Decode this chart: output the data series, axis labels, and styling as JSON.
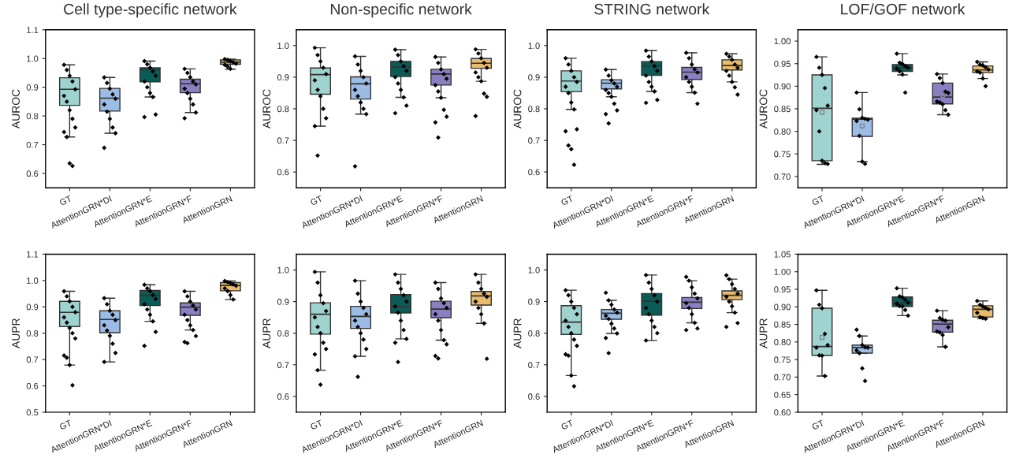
{
  "chart_data": [
    {
      "type": "box",
      "title": "Cell type-specific network",
      "ylabel": "AUROC",
      "categories": [
        "GT",
        "AttentionGRN*DI",
        "AttentionGRN*E",
        "AttentionGRN*F",
        "AttentionGRN"
      ],
      "colors": [
        "#9fd3d0",
        "#9bbde5",
        "#0b5b56",
        "#8a7fc0",
        "#e9bb6c"
      ],
      "ylim": [
        0.55,
        1.1
      ],
      "yticks": [
        0.6,
        0.7,
        0.8,
        0.9,
        {
          "value": 1.0,
          "label": "1.0"
        },
        1.1
      ],
      "boxes": [
        {
          "low": 0.727,
          "q1": 0.837,
          "median": 0.893,
          "q3": 0.933,
          "high": 0.978
        },
        {
          "low": 0.74,
          "q1": 0.817,
          "median": 0.862,
          "q3": 0.896,
          "high": 0.934
        },
        {
          "low": 0.866,
          "q1": 0.919,
          "median": 0.961,
          "q3": 0.968,
          "high": 0.991
        },
        {
          "low": 0.812,
          "q1": 0.881,
          "median": 0.912,
          "q3": 0.928,
          "high": 0.964
        },
        {
          "low": 0.963,
          "q1": 0.98,
          "median": 0.987,
          "q3": 0.995,
          "high": 0.998
        }
      ],
      "series": [
        {
          "type": "scatter",
          "color": "#000000",
          "marker": "diamond",
          "x": [
            "GT",
            "GT",
            "GT",
            "GT",
            "GT",
            "GT",
            "GT",
            "GT",
            "GT",
            "GT",
            "GT",
            "GT",
            "GT",
            "GT",
            "AttentionGRN*DI",
            "AttentionGRN*DI",
            "AttentionGRN*DI",
            "AttentionGRN*DI",
            "AttentionGRN*DI",
            "AttentionGRN*DI",
            "AttentionGRN*DI",
            "AttentionGRN*DI",
            "AttentionGRN*DI",
            "AttentionGRN*DI",
            "AttentionGRN*DI",
            "AttentionGRN*E",
            "AttentionGRN*E",
            "AttentionGRN*E",
            "AttentionGRN*E",
            "AttentionGRN*E",
            "AttentionGRN*E",
            "AttentionGRN*E",
            "AttentionGRN*E",
            "AttentionGRN*E",
            "AttentionGRN*E",
            "AttentionGRN*E",
            "AttentionGRN*F",
            "AttentionGRN*F",
            "AttentionGRN*F",
            "AttentionGRN*F",
            "AttentionGRN*F",
            "AttentionGRN*F",
            "AttentionGRN*F",
            "AttentionGRN*F",
            "AttentionGRN*F",
            "AttentionGRN*F",
            "AttentionGRN*F",
            "AttentionGRN",
            "AttentionGRN",
            "AttentionGRN",
            "AttentionGRN",
            "AttentionGRN",
            "AttentionGRN",
            "AttentionGRN",
            "AttentionGRN"
          ],
          "values": [
            0.978,
            0.96,
            0.94,
            0.92,
            0.893,
            0.87,
            0.85,
            0.82,
            0.79,
            0.76,
            0.744,
            0.727,
            0.635,
            0.626,
            0.934,
            0.915,
            0.895,
            0.875,
            0.86,
            0.84,
            0.815,
            0.79,
            0.76,
            0.74,
            0.689,
            0.991,
            0.98,
            0.968,
            0.955,
            0.94,
            0.92,
            0.9,
            0.88,
            0.866,
            0.805,
            0.796,
            0.964,
            0.95,
            0.935,
            0.92,
            0.91,
            0.895,
            0.88,
            0.86,
            0.84,
            0.812,
            0.792,
            0.998,
            0.995,
            0.99,
            0.986,
            0.982,
            0.978,
            0.972,
            0.964
          ]
        }
      ]
    },
    {
      "type": "box",
      "title": "Non-specific network",
      "ylabel": "AUROC",
      "categories": [
        "GT",
        "AttentionGRN*DI",
        "AttentionGRN*E",
        "AttentionGRN*F",
        "AttentionGRN"
      ],
      "colors": [
        "#9fd3d0",
        "#9bbde5",
        "#0b5b56",
        "#8a7fc0",
        "#e9bb6c"
      ],
      "ylim": [
        0.55,
        1.05
      ],
      "yticks": [
        0.6,
        0.7,
        0.8,
        0.9,
        {
          "value": 1.0,
          "label": "1.0"
        }
      ],
      "boxes": [
        {
          "low": 0.745,
          "q1": 0.846,
          "median": 0.908,
          "q3": 0.929,
          "high": 0.993
        },
        {
          "low": 0.783,
          "q1": 0.831,
          "median": 0.879,
          "q3": 0.901,
          "high": 0.966
        },
        {
          "low": 0.836,
          "q1": 0.902,
          "median": 0.932,
          "q3": 0.95,
          "high": 0.987
        },
        {
          "low": 0.835,
          "q1": 0.875,
          "median": 0.91,
          "q3": 0.925,
          "high": 0.964
        },
        {
          "low": 0.887,
          "q1": 0.928,
          "median": 0.944,
          "q3": 0.959,
          "high": 0.988
        }
      ],
      "series": [
        {
          "type": "scatter",
          "color": "#000000",
          "marker": "diamond",
          "x": [
            "GT",
            "GT",
            "GT",
            "GT",
            "GT",
            "GT",
            "GT",
            "GT",
            "GT",
            "GT",
            "GT",
            "GT",
            "AttentionGRN*DI",
            "AttentionGRN*DI",
            "AttentionGRN*DI",
            "AttentionGRN*DI",
            "AttentionGRN*DI",
            "AttentionGRN*DI",
            "AttentionGRN*DI",
            "AttentionGRN*DI",
            "AttentionGRN*DI",
            "AttentionGRN*DI",
            "AttentionGRN*DI",
            "AttentionGRN*E",
            "AttentionGRN*E",
            "AttentionGRN*E",
            "AttentionGRN*E",
            "AttentionGRN*E",
            "AttentionGRN*E",
            "AttentionGRN*E",
            "AttentionGRN*E",
            "AttentionGRN*E",
            "AttentionGRN*E",
            "AttentionGRN*E",
            "AttentionGRN*F",
            "AttentionGRN*F",
            "AttentionGRN*F",
            "AttentionGRN*F",
            "AttentionGRN*F",
            "AttentionGRN*F",
            "AttentionGRN*F",
            "AttentionGRN*F",
            "AttentionGRN*F",
            "AttentionGRN*F",
            "AttentionGRN*F",
            "AttentionGRN*F",
            "AttentionGRN",
            "AttentionGRN",
            "AttentionGRN",
            "AttentionGRN",
            "AttentionGRN",
            "AttentionGRN",
            "AttentionGRN",
            "AttentionGRN",
            "AttentionGRN",
            "AttentionGRN",
            "AttentionGRN"
          ],
          "values": [
            0.993,
            0.97,
            0.95,
            0.93,
            0.91,
            0.89,
            0.86,
            0.84,
            0.8,
            0.77,
            0.745,
            0.652,
            0.966,
            0.94,
            0.92,
            0.9,
            0.88,
            0.86,
            0.84,
            0.82,
            0.8,
            0.783,
            0.618,
            0.987,
            0.97,
            0.95,
            0.935,
            0.92,
            0.9,
            0.88,
            0.86,
            0.836,
            0.81,
            0.786,
            0.964,
            0.945,
            0.925,
            0.91,
            0.895,
            0.875,
            0.855,
            0.835,
            0.797,
            0.775,
            0.757,
            0.709,
            0.988,
            0.975,
            0.96,
            0.945,
            0.93,
            0.915,
            0.9,
            0.887,
            0.848,
            0.838,
            0.777
          ]
        }
      ]
    },
    {
      "type": "box",
      "title": "STRING network",
      "ylabel": "AUROC",
      "categories": [
        "GT",
        "AttentionGRN*DI",
        "AttentionGRN*E",
        "AttentionGRN*F",
        "AttentionGRN"
      ],
      "colors": [
        "#9fd3d0",
        "#9bbde5",
        "#0b5b56",
        "#8a7fc0",
        "#e9bb6c"
      ],
      "ylim": [
        0.55,
        1.05
      ],
      "yticks": [
        0.6,
        0.7,
        0.8,
        0.9,
        {
          "value": 1.0,
          "label": "1.0"
        }
      ],
      "boxes": [
        {
          "low": 0.798,
          "q1": 0.854,
          "median": 0.888,
          "q3": 0.92,
          "high": 0.96
        },
        {
          "low": 0.838,
          "q1": 0.863,
          "median": 0.881,
          "q3": 0.892,
          "high": 0.924
        },
        {
          "low": 0.855,
          "q1": 0.906,
          "median": 0.936,
          "q3": 0.949,
          "high": 0.984
        },
        {
          "low": 0.851,
          "q1": 0.893,
          "median": 0.916,
          "q3": 0.931,
          "high": 0.977
        },
        {
          "low": 0.885,
          "q1": 0.923,
          "median": 0.937,
          "q3": 0.955,
          "high": 0.974
        }
      ],
      "series": [
        {
          "type": "scatter",
          "color": "#000000",
          "marker": "diamond",
          "x": [
            "GT",
            "GT",
            "GT",
            "GT",
            "GT",
            "GT",
            "GT",
            "GT",
            "GT",
            "GT",
            "GT",
            "GT",
            "GT",
            "GT",
            "AttentionGRN*DI",
            "AttentionGRN*DI",
            "AttentionGRN*DI",
            "AttentionGRN*DI",
            "AttentionGRN*DI",
            "AttentionGRN*DI",
            "AttentionGRN*DI",
            "AttentionGRN*DI",
            "AttentionGRN*DI",
            "AttentionGRN*DI",
            "AttentionGRN*DI",
            "AttentionGRN*DI",
            "AttentionGRN*E",
            "AttentionGRN*E",
            "AttentionGRN*E",
            "AttentionGRN*E",
            "AttentionGRN*E",
            "AttentionGRN*E",
            "AttentionGRN*E",
            "AttentionGRN*E",
            "AttentionGRN*E",
            "AttentionGRN*E",
            "AttentionGRN*E",
            "AttentionGRN*F",
            "AttentionGRN*F",
            "AttentionGRN*F",
            "AttentionGRN*F",
            "AttentionGRN*F",
            "AttentionGRN*F",
            "AttentionGRN*F",
            "AttentionGRN*F",
            "AttentionGRN*F",
            "AttentionGRN*F",
            "AttentionGRN",
            "AttentionGRN",
            "AttentionGRN",
            "AttentionGRN",
            "AttentionGRN",
            "AttentionGRN",
            "AttentionGRN",
            "AttentionGRN",
            "AttentionGRN",
            "AttentionGRN"
          ],
          "values": [
            0.96,
            0.94,
            0.92,
            0.9,
            0.885,
            0.87,
            0.85,
            0.82,
            0.798,
            0.735,
            0.729,
            0.684,
            0.672,
            0.623,
            0.924,
            0.905,
            0.89,
            0.88,
            0.87,
            0.86,
            0.85,
            0.838,
            0.816,
            0.795,
            0.783,
            0.754,
            0.984,
            0.965,
            0.95,
            0.935,
            0.92,
            0.905,
            0.885,
            0.87,
            0.855,
            0.828,
            0.819,
            0.977,
            0.96,
            0.94,
            0.925,
            0.915,
            0.9,
            0.885,
            0.87,
            0.851,
            0.816,
            0.974,
            0.965,
            0.955,
            0.94,
            0.93,
            0.92,
            0.905,
            0.885,
            0.868,
            0.845
          ]
        }
      ]
    },
    {
      "type": "box",
      "title": "LOF/GOF network",
      "ylabel": "AUROC",
      "categories": [
        "GT",
        "AttentionGRN*DI",
        "AttentionGRN*E",
        "AttentionGRN*F",
        "AttentionGRN"
      ],
      "colors": [
        "#9fd3d0",
        "#9bbde5",
        "#0b5b56",
        "#8a7fc0",
        "#e9bb6c"
      ],
      "ylim": [
        0.675,
        1.025
      ],
      "yticks": [
        {
          "value": 0.7,
          "label": "0.70"
        },
        {
          "value": 0.75,
          "label": "0.75"
        },
        {
          "value": 0.8,
          "label": "0.80"
        },
        {
          "value": 0.85,
          "label": "0.85"
        },
        {
          "value": 0.9,
          "label": "0.90"
        },
        {
          "value": 0.95,
          "label": "0.95"
        },
        {
          "value": 1.0,
          "label": "1.00"
        }
      ],
      "boxes": [
        {
          "low": 0.727,
          "q1": 0.735,
          "median": 0.851,
          "q3": 0.925,
          "high": 0.965,
          "mean": 0.842
        },
        {
          "low": 0.733,
          "q1": 0.789,
          "median": 0.827,
          "q3": 0.829,
          "high": 0.886,
          "mean": 0.812
        },
        {
          "low": 0.925,
          "q1": 0.933,
          "median": 0.941,
          "q3": 0.948,
          "high": 0.972
        },
        {
          "low": 0.837,
          "q1": 0.861,
          "median": 0.876,
          "q3": 0.907,
          "high": 0.927,
          "mean": 0.88
        },
        {
          "low": 0.917,
          "q1": 0.93,
          "median": 0.936,
          "q3": 0.945,
          "high": 0.954
        }
      ],
      "series": [
        {
          "type": "scatter",
          "color": "#000000",
          "marker": "diamond",
          "x": [
            "GT",
            "GT",
            "GT",
            "GT",
            "GT",
            "GT",
            "GT",
            "GT",
            "GT",
            "GT",
            "AttentionGRN*DI",
            "AttentionGRN*DI",
            "AttentionGRN*DI",
            "AttentionGRN*DI",
            "AttentionGRN*DI",
            "AttentionGRN*DI",
            "AttentionGRN*DI",
            "AttentionGRN*DI",
            "AttentionGRN*DI",
            "AttentionGRN*E",
            "AttentionGRN*E",
            "AttentionGRN*E",
            "AttentionGRN*E",
            "AttentionGRN*E",
            "AttentionGRN*E",
            "AttentionGRN*E",
            "AttentionGRN*E",
            "AttentionGRN*E",
            "AttentionGRN*F",
            "AttentionGRN*F",
            "AttentionGRN*F",
            "AttentionGRN*F",
            "AttentionGRN*F",
            "AttentionGRN*F",
            "AttentionGRN*F",
            "AttentionGRN*F",
            "AttentionGRN*F",
            "AttentionGRN*F",
            "AttentionGRN",
            "AttentionGRN",
            "AttentionGRN",
            "AttentionGRN",
            "AttentionGRN",
            "AttentionGRN",
            "AttentionGRN",
            "AttentionGRN",
            "AttentionGRN"
          ],
          "values": [
            0.965,
            0.941,
            0.925,
            0.896,
            0.857,
            0.847,
            0.8,
            0.735,
            0.73,
            0.728,
            0.886,
            0.849,
            0.83,
            0.828,
            0.826,
            0.823,
            0.79,
            0.733,
            0.728,
            0.972,
            0.952,
            0.949,
            0.945,
            0.941,
            0.939,
            0.933,
            0.926,
            0.886,
            0.927,
            0.918,
            0.907,
            0.888,
            0.885,
            0.866,
            0.864,
            0.86,
            0.847,
            0.837,
            0.954,
            0.948,
            0.946,
            0.942,
            0.937,
            0.933,
            0.93,
            0.917,
            0.9
          ]
        }
      ]
    },
    {
      "type": "box",
      "ylabel": "AUPR",
      "categories": [
        "GT",
        "AttentionGRN*DI",
        "AttentionGRN*E",
        "AttentionGRN*F",
        "AttentionGRN"
      ],
      "colors": [
        "#9fd3d0",
        "#9bbde5",
        "#0b5b56",
        "#8a7fc0",
        "#e9bb6c"
      ],
      "ylim": [
        0.5,
        1.1
      ],
      "yticks": [
        0.5,
        0.6,
        0.7,
        0.8,
        0.9,
        {
          "value": 1.0,
          "label": "1.0"
        },
        1.1
      ],
      "boxes": [
        {
          "low": 0.679,
          "q1": 0.825,
          "median": 0.879,
          "q3": 0.921,
          "high": 0.959
        },
        {
          "low": 0.691,
          "q1": 0.802,
          "median": 0.852,
          "q3": 0.885,
          "high": 0.933
        },
        {
          "low": 0.845,
          "q1": 0.905,
          "median": 0.944,
          "q3": 0.962,
          "high": 0.984
        },
        {
          "low": 0.812,
          "q1": 0.868,
          "median": 0.899,
          "q3": 0.915,
          "high": 0.959
        },
        {
          "low": 0.928,
          "q1": 0.961,
          "median": 0.981,
          "q3": 0.992,
          "high": 0.998
        }
      ],
      "series": [
        {
          "type": "scatter",
          "color": "#000000",
          "marker": "diamond",
          "x": [
            "GT",
            "GT",
            "GT",
            "GT",
            "GT",
            "GT",
            "GT",
            "GT",
            "GT",
            "GT",
            "GT",
            "GT",
            "GT",
            "GT",
            "AttentionGRN*DI",
            "AttentionGRN*DI",
            "AttentionGRN*DI",
            "AttentionGRN*DI",
            "AttentionGRN*DI",
            "AttentionGRN*DI",
            "AttentionGRN*DI",
            "AttentionGRN*DI",
            "AttentionGRN*DI",
            "AttentionGRN*DI",
            "AttentionGRN*DI",
            "AttentionGRN*E",
            "AttentionGRN*E",
            "AttentionGRN*E",
            "AttentionGRN*E",
            "AttentionGRN*E",
            "AttentionGRN*E",
            "AttentionGRN*E",
            "AttentionGRN*E",
            "AttentionGRN*E",
            "AttentionGRN*E",
            "AttentionGRN*E",
            "AttentionGRN*F",
            "AttentionGRN*F",
            "AttentionGRN*F",
            "AttentionGRN*F",
            "AttentionGRN*F",
            "AttentionGRN*F",
            "AttentionGRN*F",
            "AttentionGRN*F",
            "AttentionGRN*F",
            "AttentionGRN*F",
            "AttentionGRN*F",
            "AttentionGRN*F",
            "AttentionGRN",
            "AttentionGRN",
            "AttentionGRN",
            "AttentionGRN",
            "AttentionGRN",
            "AttentionGRN",
            "AttentionGRN",
            "AttentionGRN",
            "AttentionGRN"
          ],
          "values": [
            0.959,
            0.94,
            0.921,
            0.9,
            0.88,
            0.86,
            0.84,
            0.82,
            0.8,
            0.78,
            0.715,
            0.707,
            0.679,
            0.602,
            0.933,
            0.91,
            0.885,
            0.87,
            0.85,
            0.83,
            0.81,
            0.79,
            0.76,
            0.725,
            0.691,
            0.984,
            0.97,
            0.96,
            0.945,
            0.93,
            0.91,
            0.89,
            0.87,
            0.845,
            0.805,
            0.752,
            0.959,
            0.94,
            0.92,
            0.905,
            0.89,
            0.87,
            0.85,
            0.83,
            0.812,
            0.789,
            0.767,
            0.762,
            0.998,
            0.994,
            0.99,
            0.985,
            0.98,
            0.97,
            0.96,
            0.945,
            0.928
          ]
        }
      ]
    },
    {
      "type": "box",
      "ylabel": "AUPR",
      "categories": [
        "GT",
        "AttentionGRN*DI",
        "AttentionGRN*E",
        "AttentionGRN*F",
        "AttentionGRN"
      ],
      "colors": [
        "#9fd3d0",
        "#9bbde5",
        "#0b5b56",
        "#8a7fc0",
        "#e9bb6c"
      ],
      "ylim": [
        0.55,
        1.05
      ],
      "yticks": [
        0.6,
        0.7,
        0.8,
        0.9,
        {
          "value": 1.0,
          "label": "1.0"
        }
      ],
      "boxes": [
        {
          "low": 0.683,
          "q1": 0.797,
          "median": 0.86,
          "q3": 0.896,
          "high": 0.994
        },
        {
          "low": 0.727,
          "q1": 0.815,
          "median": 0.853,
          "q3": 0.885,
          "high": 0.966
        },
        {
          "low": 0.782,
          "q1": 0.864,
          "median": 0.884,
          "q3": 0.922,
          "high": 0.986
        },
        {
          "low": 0.778,
          "q1": 0.849,
          "median": 0.876,
          "q3": 0.901,
          "high": 0.96
        },
        {
          "low": 0.831,
          "q1": 0.889,
          "median": 0.918,
          "q3": 0.932,
          "high": 0.986
        }
      ],
      "series": [
        {
          "type": "scatter",
          "color": "#000000",
          "marker": "diamond",
          "x": [
            "GT",
            "GT",
            "GT",
            "GT",
            "GT",
            "GT",
            "GT",
            "GT",
            "GT",
            "GT",
            "GT",
            "GT",
            "GT",
            "AttentionGRN*DI",
            "AttentionGRN*DI",
            "AttentionGRN*DI",
            "AttentionGRN*DI",
            "AttentionGRN*DI",
            "AttentionGRN*DI",
            "AttentionGRN*DI",
            "AttentionGRN*DI",
            "AttentionGRN*DI",
            "AttentionGRN*DI",
            "AttentionGRN*DI",
            "AttentionGRN*DI",
            "AttentionGRN*E",
            "AttentionGRN*E",
            "AttentionGRN*E",
            "AttentionGRN*E",
            "AttentionGRN*E",
            "AttentionGRN*E",
            "AttentionGRN*E",
            "AttentionGRN*E",
            "AttentionGRN*E",
            "AttentionGRN*E",
            "AttentionGRN*E",
            "AttentionGRN*E",
            "AttentionGRN*F",
            "AttentionGRN*F",
            "AttentionGRN*F",
            "AttentionGRN*F",
            "AttentionGRN*F",
            "AttentionGRN*F",
            "AttentionGRN*F",
            "AttentionGRN*F",
            "AttentionGRN*F",
            "AttentionGRN*F",
            "AttentionGRN*F",
            "AttentionGRN*F",
            "AttentionGRN",
            "AttentionGRN",
            "AttentionGRN",
            "AttentionGRN",
            "AttentionGRN",
            "AttentionGRN",
            "AttentionGRN",
            "AttentionGRN",
            "AttentionGRN",
            "AttentionGRN"
          ],
          "values": [
            0.994,
            0.96,
            0.92,
            0.895,
            0.87,
            0.85,
            0.82,
            0.8,
            0.77,
            0.75,
            0.733,
            0.683,
            0.637,
            0.966,
            0.925,
            0.9,
            0.88,
            0.86,
            0.84,
            0.82,
            0.8,
            0.78,
            0.75,
            0.727,
            0.662,
            0.986,
            0.96,
            0.94,
            0.92,
            0.9,
            0.885,
            0.865,
            0.84,
            0.81,
            0.782,
            0.77,
            0.709,
            0.96,
            0.94,
            0.91,
            0.895,
            0.88,
            0.86,
            0.84,
            0.81,
            0.778,
            0.765,
            0.728,
            0.72,
            0.986,
            0.96,
            0.94,
            0.925,
            0.915,
            0.9,
            0.88,
            0.86,
            0.831,
            0.719
          ]
        }
      ]
    },
    {
      "type": "box",
      "ylabel": "AUPR",
      "categories": [
        "GT",
        "AttentionGRN*DI",
        "AttentionGRN*E",
        "AttentionGRN*F",
        "AttentionGRN"
      ],
      "colors": [
        "#9fd3d0",
        "#9bbde5",
        "#0b5b56",
        "#8a7fc0",
        "#e9bb6c"
      ],
      "ylim": [
        0.55,
        1.05
      ],
      "yticks": [
        0.6,
        0.7,
        0.8,
        0.9,
        {
          "value": 1.0,
          "label": "1.0"
        }
      ],
      "boxes": [
        {
          "low": 0.666,
          "q1": 0.796,
          "median": 0.835,
          "q3": 0.887,
          "high": 0.936
        },
        {
          "low": 0.799,
          "q1": 0.844,
          "median": 0.863,
          "q3": 0.875,
          "high": 0.904
        },
        {
          "low": 0.777,
          "q1": 0.857,
          "median": 0.901,
          "q3": 0.925,
          "high": 0.984
        },
        {
          "low": 0.833,
          "q1": 0.878,
          "median": 0.898,
          "q3": 0.913,
          "high": 0.966
        },
        {
          "low": 0.865,
          "q1": 0.906,
          "median": 0.92,
          "q3": 0.934,
          "high": 0.971
        }
      ],
      "series": [
        {
          "type": "scatter",
          "color": "#000000",
          "marker": "diamond",
          "x": [
            "GT",
            "GT",
            "GT",
            "GT",
            "GT",
            "GT",
            "GT",
            "GT",
            "GT",
            "GT",
            "GT",
            "GT",
            "GT",
            "GT",
            "AttentionGRN*DI",
            "AttentionGRN*DI",
            "AttentionGRN*DI",
            "AttentionGRN*DI",
            "AttentionGRN*DI",
            "AttentionGRN*DI",
            "AttentionGRN*DI",
            "AttentionGRN*DI",
            "AttentionGRN*DI",
            "AttentionGRN*DI",
            "AttentionGRN*DI",
            "AttentionGRN*DI",
            "AttentionGRN*E",
            "AttentionGRN*E",
            "AttentionGRN*E",
            "AttentionGRN*E",
            "AttentionGRN*E",
            "AttentionGRN*E",
            "AttentionGRN*E",
            "AttentionGRN*E",
            "AttentionGRN*E",
            "AttentionGRN*E",
            "AttentionGRN*E",
            "AttentionGRN*F",
            "AttentionGRN*F",
            "AttentionGRN*F",
            "AttentionGRN*F",
            "AttentionGRN*F",
            "AttentionGRN*F",
            "AttentionGRN*F",
            "AttentionGRN*F",
            "AttentionGRN*F",
            "AttentionGRN*F",
            "AttentionGRN*F",
            "AttentionGRN",
            "AttentionGRN",
            "AttentionGRN",
            "AttentionGRN",
            "AttentionGRN",
            "AttentionGRN",
            "AttentionGRN",
            "AttentionGRN",
            "AttentionGRN",
            "AttentionGRN",
            "AttentionGRN"
          ],
          "values": [
            0.936,
            0.92,
            0.9,
            0.88,
            0.86,
            0.84,
            0.82,
            0.8,
            0.78,
            0.76,
            0.733,
            0.729,
            0.666,
            0.632,
            0.928,
            0.904,
            0.89,
            0.875,
            0.865,
            0.855,
            0.845,
            0.83,
            0.815,
            0.799,
            0.785,
            0.737,
            0.984,
            0.96,
            0.94,
            0.92,
            0.9,
            0.88,
            0.86,
            0.84,
            0.82,
            0.8,
            0.777,
            0.978,
            0.966,
            0.945,
            0.925,
            0.91,
            0.895,
            0.88,
            0.86,
            0.833,
            0.815,
            0.81,
            0.983,
            0.971,
            0.955,
            0.94,
            0.925,
            0.915,
            0.9,
            0.885,
            0.865,
            0.832,
            0.82
          ]
        }
      ]
    },
    {
      "type": "box",
      "ylabel": "AUPR",
      "categories": [
        "GT",
        "AttentionGRN*DI",
        "AttentionGRN*E",
        "AttentionGRN*F",
        "AttentionGRN"
      ],
      "colors": [
        "#9fd3d0",
        "#9bbde5",
        "#0b5b56",
        "#8a7fc0",
        "#e9bb6c"
      ],
      "ylim": [
        0.6,
        1.05
      ],
      "yticks": [
        {
          "value": 0.6,
          "label": "0.60"
        },
        {
          "value": 0.65,
          "label": "0.65"
        },
        {
          "value": 0.7,
          "label": "0.70"
        },
        {
          "value": 0.75,
          "label": "0.75"
        },
        {
          "value": 0.8,
          "label": "0.80"
        },
        {
          "value": 0.85,
          "label": "0.85"
        },
        {
          "value": 0.9,
          "label": "0.90"
        },
        {
          "value": 0.95,
          "label": "0.95"
        },
        {
          "value": 1.0,
          "label": "1.00"
        },
        {
          "value": 1.05,
          "label": "1.05"
        }
      ],
      "boxes": [
        {
          "low": 0.703,
          "q1": 0.762,
          "median": 0.787,
          "q3": 0.896,
          "high": 0.947,
          "mean": 0.813
        },
        {
          "low": 0.768,
          "q1": 0.768,
          "median": 0.784,
          "q3": 0.791,
          "high": 0.817
        },
        {
          "low": 0.875,
          "q1": 0.901,
          "median": 0.911,
          "q3": 0.928,
          "high": 0.953
        },
        {
          "low": 0.786,
          "q1": 0.828,
          "median": 0.851,
          "q3": 0.862,
          "high": 0.889
        },
        {
          "low": 0.866,
          "q1": 0.871,
          "median": 0.893,
          "q3": 0.903,
          "high": 0.917
        }
      ],
      "series": [
        {
          "type": "scatter",
          "color": "#000000",
          "marker": "diamond",
          "x": [
            "GT",
            "GT",
            "GT",
            "GT",
            "GT",
            "GT",
            "GT",
            "GT",
            "GT",
            "AttentionGRN*DI",
            "AttentionGRN*DI",
            "AttentionGRN*DI",
            "AttentionGRN*DI",
            "AttentionGRN*DI",
            "AttentionGRN*DI",
            "AttentionGRN*DI",
            "AttentionGRN*DI",
            "AttentionGRN*DI",
            "AttentionGRN*E",
            "AttentionGRN*E",
            "AttentionGRN*E",
            "AttentionGRN*E",
            "AttentionGRN*E",
            "AttentionGRN*E",
            "AttentionGRN*E",
            "AttentionGRN*E",
            "AttentionGRN*E",
            "AttentionGRN*E",
            "AttentionGRN*F",
            "AttentionGRN*F",
            "AttentionGRN*F",
            "AttentionGRN*F",
            "AttentionGRN*F",
            "AttentionGRN*F",
            "AttentionGRN*F",
            "AttentionGRN*F",
            "AttentionGRN*F",
            "AttentionGRN",
            "AttentionGRN",
            "AttentionGRN",
            "AttentionGRN",
            "AttentionGRN",
            "AttentionGRN",
            "AttentionGRN",
            "AttentionGRN",
            "AttentionGRN"
          ],
          "values": [
            0.947,
            0.906,
            0.896,
            0.823,
            0.791,
            0.784,
            0.762,
            0.761,
            0.703,
            0.835,
            0.817,
            0.791,
            0.785,
            0.784,
            0.776,
            0.768,
            0.725,
            0.689,
            0.953,
            0.93,
            0.927,
            0.92,
            0.912,
            0.909,
            0.902,
            0.901,
            0.891,
            0.875,
            0.889,
            0.868,
            0.863,
            0.861,
            0.842,
            0.83,
            0.827,
            0.82,
            0.786,
            0.917,
            0.906,
            0.901,
            0.897,
            0.893,
            0.883,
            0.871,
            0.868,
            0.866
          ]
        }
      ]
    }
  ]
}
